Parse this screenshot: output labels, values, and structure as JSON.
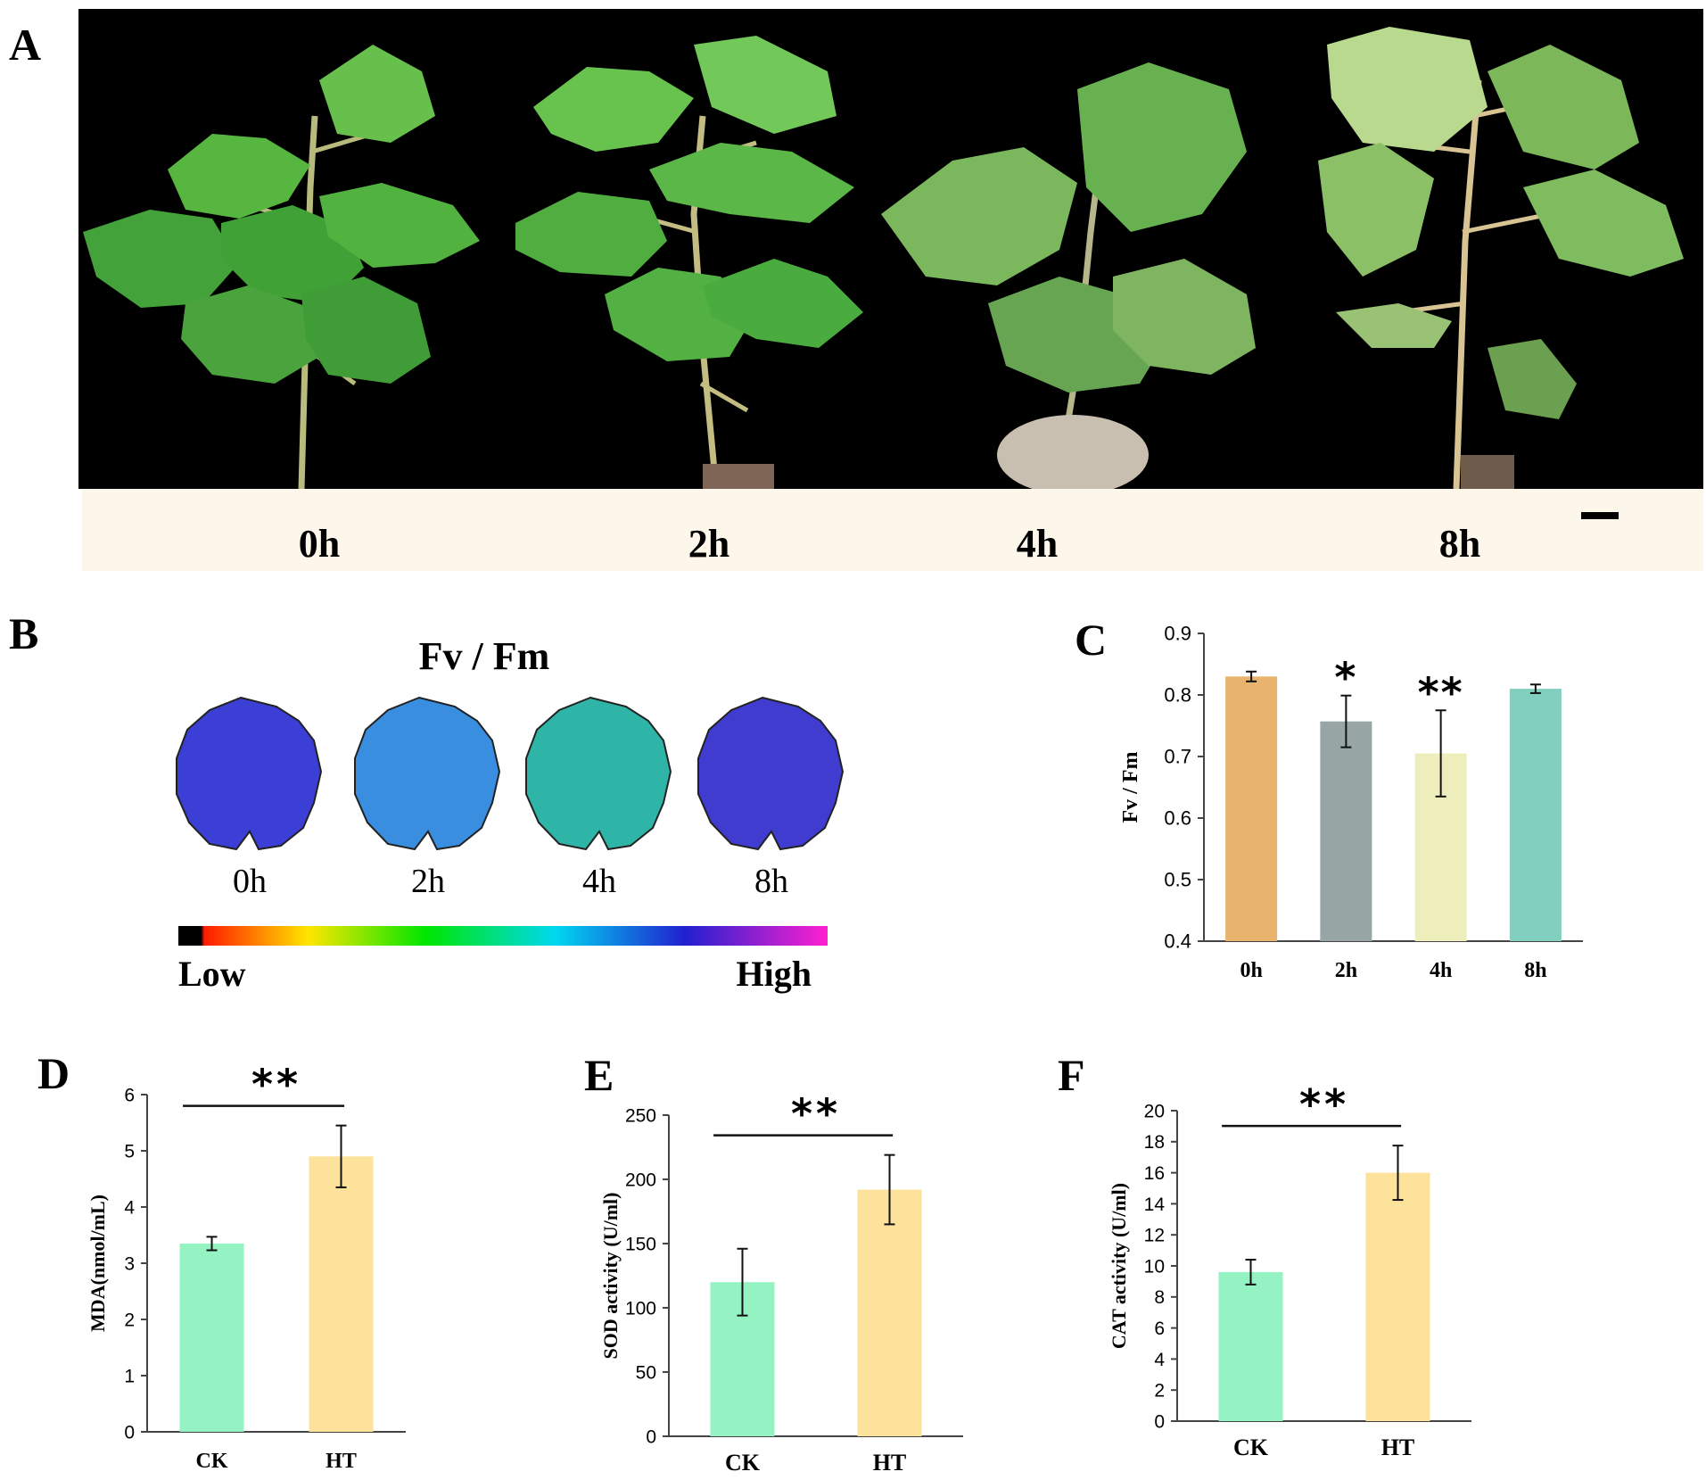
{
  "panels": {
    "A": {
      "letter": "A",
      "time_labels": [
        "0h",
        "2h",
        "4h",
        "8h"
      ]
    },
    "B": {
      "letter": "B",
      "title": "Fv / Fm",
      "leaf_labels": [
        "0h",
        "2h",
        "4h",
        "8h"
      ],
      "scale_low": "Low",
      "scale_high": "High",
      "leaf_colors": [
        "#3b3fd6",
        "#3a8ee0",
        "#2fb5a8",
        "#3f3ccf"
      ]
    },
    "C": {
      "letter": "C"
    },
    "D": {
      "letter": "D"
    },
    "E": {
      "letter": "E"
    },
    "F": {
      "letter": "F"
    }
  },
  "chart_data": [
    {
      "id": "C",
      "type": "bar",
      "categories": [
        "0h",
        "2h",
        "4h",
        "8h"
      ],
      "values": [
        0.83,
        0.757,
        0.705,
        0.81
      ],
      "errors": [
        0.008,
        0.042,
        0.07,
        0.007
      ],
      "significance": [
        "",
        "*",
        "**",
        ""
      ],
      "colors": [
        "#e8b36d",
        "#97a5a5",
        "#eeeebd",
        "#80cfbf"
      ],
      "ylabel": "Fv / Fm",
      "ylim": [
        0.4,
        0.9
      ],
      "yticks": [
        "0.4",
        "0.5",
        "0.6",
        "0.7",
        "0.8",
        "0.9"
      ],
      "grid": false
    },
    {
      "id": "D",
      "type": "bar",
      "categories": [
        "CK",
        "HT"
      ],
      "values": [
        3.35,
        4.9
      ],
      "errors": [
        0.12,
        0.55
      ],
      "colors": [
        "#95f3c3",
        "#fde29b"
      ],
      "ylabel": "MDA(nmol/mL)",
      "ylim": [
        0,
        6
      ],
      "yticks": [
        "0",
        "1",
        "2",
        "3",
        "4",
        "5",
        "6"
      ],
      "bracket_label": "**",
      "grid": false
    },
    {
      "id": "E",
      "type": "bar",
      "categories": [
        "CK",
        "HT"
      ],
      "values": [
        120,
        192
      ],
      "errors": [
        26,
        27
      ],
      "colors": [
        "#95f3c3",
        "#fde29b"
      ],
      "ylabel": "SOD activity (U/ml)",
      "ylim": [
        0,
        250
      ],
      "yticks": [
        "0",
        "50",
        "100",
        "150",
        "200",
        "250"
      ],
      "bracket_label": "**",
      "grid": false
    },
    {
      "id": "F",
      "type": "bar",
      "categories": [
        "CK",
        "HT"
      ],
      "values": [
        9.6,
        16
      ],
      "errors": [
        0.8,
        1.75
      ],
      "colors": [
        "#95f3c3",
        "#fde29b"
      ],
      "ylabel": "CAT activity (U/ml)",
      "ylim": [
        0,
        20
      ],
      "yticks": [
        "0",
        "2",
        "4",
        "6",
        "8",
        "10",
        "12",
        "14",
        "16",
        "18",
        "20"
      ],
      "bracket_label": "**",
      "grid": false
    }
  ]
}
